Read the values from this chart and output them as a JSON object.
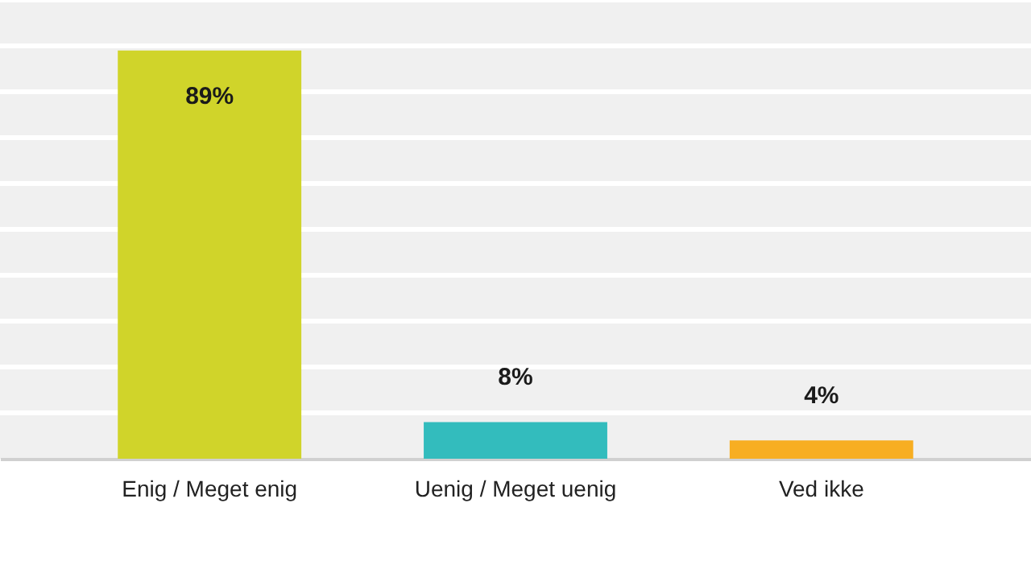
{
  "chart_data": {
    "type": "bar",
    "categories": [
      "Enig / Meget enig",
      "Uenig / Meget uenig",
      "Ved ikke"
    ],
    "values": [
      89,
      8,
      4
    ],
    "colors": [
      "#d0d42a",
      "#33bcbd",
      "#f7ae22"
    ],
    "value_labels": [
      "89%",
      "8%",
      "4%"
    ],
    "ylim": [
      0,
      100
    ],
    "yticks": [
      {
        "value": 10,
        "label": null
      },
      {
        "value": 20,
        "label": null
      },
      {
        "value": 30,
        "label": null
      },
      {
        "value": 40,
        "label": null
      },
      {
        "value": 50,
        "label": null
      },
      {
        "value": 60,
        "label": null
      },
      {
        "value": 70,
        "label": null
      },
      {
        "value": 80,
        "label": null
      },
      {
        "value": 90,
        "label": null
      },
      {
        "value": 100,
        "label": null
      }
    ],
    "grid": "y",
    "tick_labels": "x"
  }
}
